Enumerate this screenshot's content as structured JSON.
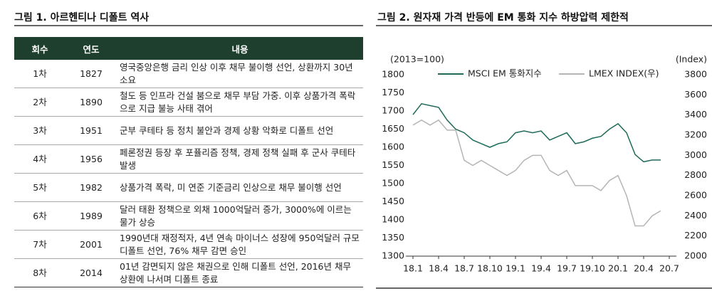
{
  "table": {
    "title": "그림 1. 아르헨티나 디폴트 역사",
    "header": [
      "회수",
      "연도",
      "내용"
    ],
    "rows": [
      [
        "1차",
        "1827",
        "영국중앙은행 금리 인상 이후 채무 불이행 선언, 상환까지 30년 소요"
      ],
      [
        "2차",
        "1890",
        "철도 등 인프라 건설 붐으로 채무 부담 가중. 이후 상품가격 폭락으로 지급 불능 사태 겪어"
      ],
      [
        "3차",
        "1951",
        "군부 쿠테타 등 정치 불안과 경제 상황 악화로 디폴트 선언"
      ],
      [
        "4차",
        "1956",
        "페론정권 등장 후 포퓰리즘 정책, 경제 정책 실패 후 군사 쿠테타 발생"
      ],
      [
        "5차",
        "1982",
        "상품가격 폭락, 미 연준 기준금리 인상으로 채무 불이행 선언"
      ],
      [
        "6차",
        "1989",
        "달러 태환 정책으로 외채 1000억달러 증가, 3000%에 이르는 물가 상승"
      ],
      [
        "7차",
        "2001",
        "1990년대 재정적자, 4년 연속 마이너스 성장에 950억달러 규모 디폴트 선언, 76% 채무 감면 승인"
      ],
      [
        "8차",
        "2014",
        "01년 감면되지 않은 채권으로 인해 디폴트 선언, 2016년 채무 상환에 나서며 디폴트 종료"
      ]
    ]
  },
  "chart_data": {
    "type": "line",
    "title": "그림 2. 원자재 가격 반등에 EM 통화 지수 하방압력 제한적",
    "y_label": "(2013=100)",
    "y2_label": "(Index)",
    "x": [
      "18.1",
      "18.2",
      "18.3",
      "18.4",
      "18.5",
      "18.6",
      "18.7",
      "18.8",
      "18.9",
      "18.10",
      "18.11",
      "18.12",
      "19.1",
      "19.2",
      "19.3",
      "19.4",
      "19.5",
      "19.6",
      "19.7",
      "19.8",
      "19.9",
      "19.10",
      "19.11",
      "19.12",
      "20.1",
      "20.2",
      "20.3",
      "20.4",
      "20.5",
      "20.6"
    ],
    "xlim": [
      "18.1",
      "20.7"
    ],
    "xticks": [
      "18.1",
      "18.4",
      "18.7",
      "18.10",
      "19.1",
      "19.4",
      "19.7",
      "19.10",
      "20.1",
      "20.4",
      "20.7"
    ],
    "ylim": [
      1300,
      1800
    ],
    "yticks": [
      1300,
      1350,
      1400,
      1450,
      1500,
      1550,
      1600,
      1650,
      1700,
      1750,
      1800
    ],
    "y2lim": [
      2000,
      3800
    ],
    "y2ticks": [
      2000,
      2200,
      2400,
      2600,
      2800,
      3000,
      3200,
      3400,
      3600,
      3800
    ],
    "series": [
      {
        "name": "MSCI EM 통화지수",
        "color": "#1e6b5a",
        "values": [
          1690,
          1720,
          1715,
          1710,
          1675,
          1650,
          1640,
          1620,
          1610,
          1600,
          1610,
          1615,
          1640,
          1645,
          1640,
          1645,
          1620,
          1630,
          1640,
          1610,
          1615,
          1625,
          1630,
          1650,
          1665,
          1640,
          1580,
          1560,
          1565,
          1565
        ]
      },
      {
        "name": "LMEX INDEX(우)",
        "color": "#b5b5b5",
        "axis": "y2",
        "values": [
          3300,
          3350,
          3300,
          3350,
          3250,
          3250,
          2950,
          2900,
          2950,
          2900,
          2850,
          2800,
          2850,
          2950,
          3000,
          3000,
          2850,
          2800,
          2850,
          2700,
          2700,
          2700,
          2650,
          2750,
          2800,
          2600,
          2300,
          2300,
          2400,
          2450
        ]
      }
    ]
  }
}
